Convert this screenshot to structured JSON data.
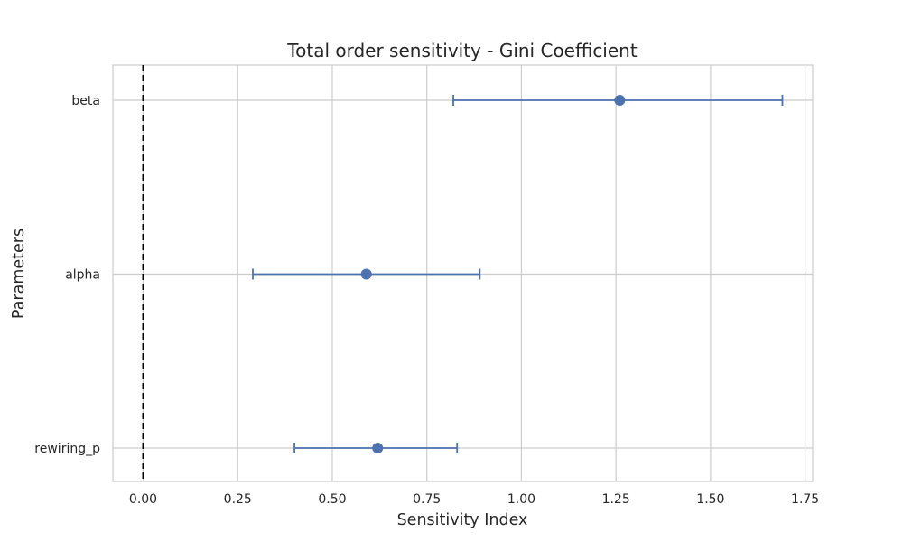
{
  "chart_data": {
    "type": "scatter",
    "title": "Total order sensitivity - Gini Coefficient",
    "xlabel": "Sensitivity Index",
    "ylabel": "Parameters",
    "xlim": [
      -0.08,
      1.77
    ],
    "x_ticks": [
      "0.00",
      "0.25",
      "0.50",
      "0.75",
      "1.00",
      "1.25",
      "1.50",
      "1.75"
    ],
    "x_tick_values": [
      0.0,
      0.25,
      0.5,
      0.75,
      1.0,
      1.25,
      1.5,
      1.75
    ],
    "grid": true,
    "reference_line": {
      "x": 0.0,
      "style": "dashed",
      "color": "#000000"
    },
    "series_color": "#4c72b0",
    "points": [
      {
        "label": "beta",
        "value": 1.26,
        "ci_low": 0.82,
        "ci_high": 1.69
      },
      {
        "label": "alpha",
        "value": 0.59,
        "ci_low": 0.29,
        "ci_high": 0.89
      },
      {
        "label": "rewiring_p",
        "value": 0.62,
        "ci_low": 0.4,
        "ci_high": 0.83
      }
    ]
  }
}
